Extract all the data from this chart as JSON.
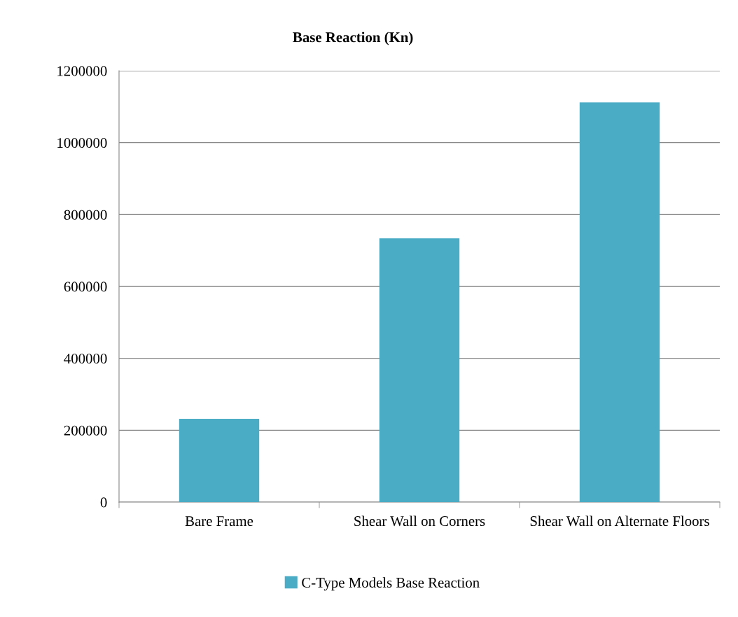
{
  "chart_data": {
    "type": "bar",
    "title": "Base Reaction (Kn)",
    "categories": [
      "Bare Frame",
      "Shear Wall on Corners",
      "Shear Wall on Alternate Floors"
    ],
    "series": [
      {
        "name": "C-Type Models Base Reaction",
        "color": "#4bacc6",
        "values": [
          232000,
          734000,
          1112000
        ]
      }
    ],
    "ylim": [
      0,
      1200000
    ],
    "yticks": [
      0,
      200000,
      400000,
      600000,
      800000,
      1000000,
      1200000
    ],
    "grid": "y",
    "legend": "bottom"
  }
}
